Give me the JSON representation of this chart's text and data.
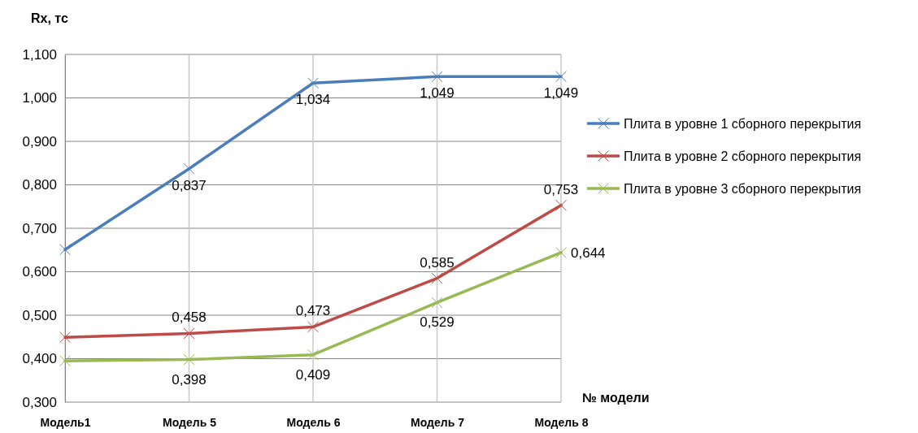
{
  "chart_data": {
    "type": "line",
    "ylabel": "Rx, тс",
    "xlabel": "№ модели",
    "categories": [
      "Модель1",
      "Модель 5",
      "Модель 6",
      "Модель 7",
      "Модель 8"
    ],
    "series": [
      {
        "name": "Плита в уровне 1 сборного перекрытия",
        "color": "#4a7ebb",
        "values": [
          0.651,
          0.837,
          1.034,
          1.049,
          1.049
        ],
        "value_labels": [
          null,
          "0,837",
          "1,034",
          "1,049",
          "1,049"
        ]
      },
      {
        "name": "Плита в уровне 2 сборного перекрытия",
        "color": "#be4b48",
        "values": [
          0.449,
          0.458,
          0.473,
          0.585,
          0.753
        ],
        "value_labels": [
          null,
          "0,458",
          "0,473",
          "0,585",
          "0,753"
        ]
      },
      {
        "name": "Плита в уровне 3 сборного перекрытия",
        "color": "#98b954",
        "values": [
          0.395,
          0.398,
          0.409,
          0.529,
          0.644
        ],
        "value_labels": [
          null,
          "0,398",
          "0,409",
          "0,529",
          "0,644"
        ]
      }
    ],
    "ylim": [
      0.3,
      1.1
    ],
    "yticks": [
      {
        "value": 0.3,
        "label": "0,300"
      },
      {
        "value": 0.4,
        "label": "0,400"
      },
      {
        "value": 0.5,
        "label": "0,500"
      },
      {
        "value": 0.6,
        "label": "0,600"
      },
      {
        "value": 0.7,
        "label": "0,700"
      },
      {
        "value": 0.8,
        "label": "0,800"
      },
      {
        "value": 0.9,
        "label": "0,900"
      },
      {
        "value": 1.0,
        "label": "1,000"
      },
      {
        "value": 1.1,
        "label": "1,100"
      }
    ],
    "grid": true,
    "legend": "right",
    "marker": "cross",
    "line_style": "solid"
  }
}
